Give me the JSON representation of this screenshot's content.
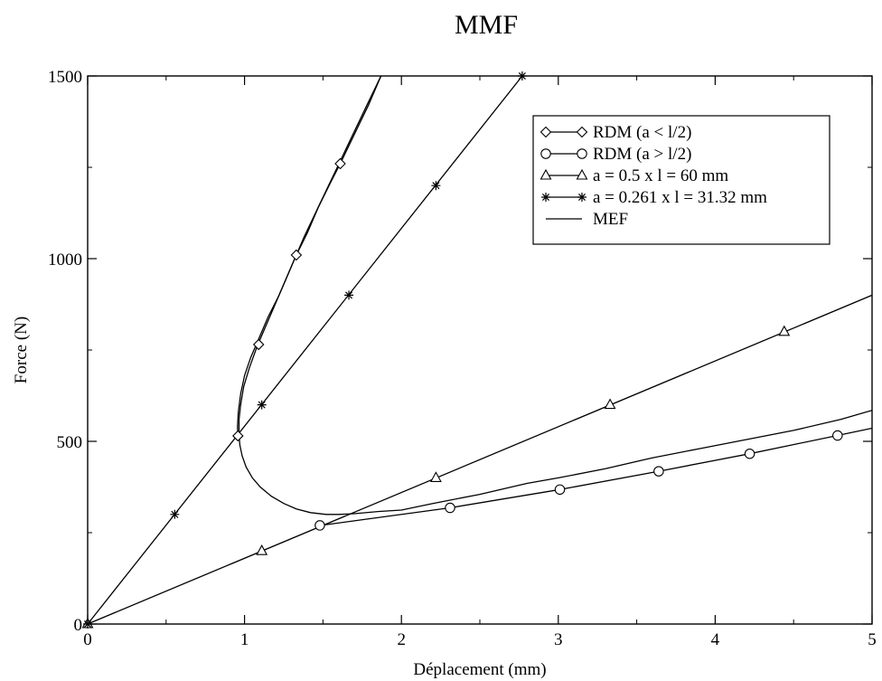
{
  "chart_data": {
    "type": "line",
    "title": "MMF",
    "xlabel": "Déplacement (mm)",
    "ylabel": "Force (N)",
    "xlim": [
      0,
      5
    ],
    "ylim": [
      0,
      1500
    ],
    "x_ticks": [
      0,
      1,
      2,
      3,
      4,
      5
    ],
    "y_ticks": [
      0,
      500,
      1000,
      1500
    ],
    "grid": false,
    "legend_position": "top-right",
    "series": [
      {
        "name": "RDM (a < l/2)",
        "marker": "diamond",
        "line": [
          [
            0.958,
            510
          ],
          [
            0.955,
            540
          ],
          [
            0.96,
            580
          ],
          [
            0.975,
            630
          ],
          [
            1.0,
            680
          ],
          [
            1.04,
            730
          ],
          [
            1.09,
            780
          ],
          [
            1.15,
            840
          ],
          [
            1.22,
            900
          ],
          [
            1.28,
            960
          ],
          [
            1.33,
            1010
          ],
          [
            1.4,
            1070
          ],
          [
            1.47,
            1140
          ],
          [
            1.55,
            1210
          ],
          [
            1.61,
            1260
          ],
          [
            1.7,
            1340
          ],
          [
            1.79,
            1420
          ],
          [
            1.87,
            1500
          ]
        ],
        "markers": [
          [
            0.958,
            515
          ],
          [
            1.09,
            765
          ],
          [
            1.33,
            1010
          ],
          [
            1.61,
            1260
          ]
        ]
      },
      {
        "name": "RDM (a > l/2)",
        "marker": "circle",
        "line": [
          [
            1.48,
            270
          ],
          [
            1.52,
            272
          ],
          [
            2.31,
            318
          ],
          [
            3.01,
            368
          ],
          [
            3.64,
            418
          ],
          [
            4.22,
            466
          ],
          [
            4.78,
            516
          ],
          [
            5.0,
            536
          ]
        ],
        "markers": [
          [
            1.48,
            270
          ],
          [
            2.31,
            318
          ],
          [
            3.01,
            368
          ],
          [
            3.64,
            418
          ],
          [
            4.22,
            466
          ],
          [
            4.78,
            516
          ]
        ]
      },
      {
        "name": "a = 0.5 x l = 60 mm",
        "marker": "triangle",
        "line": [
          [
            0,
            0
          ],
          [
            5.0,
            900
          ]
        ],
        "markers": [
          [
            0,
            0
          ],
          [
            1.11,
            200
          ],
          [
            2.22,
            400
          ],
          [
            3.33,
            600
          ],
          [
            4.44,
            800
          ]
        ]
      },
      {
        "name": "a = 0.261 x l = 31.32 mm",
        "marker": "star",
        "line": [
          [
            0,
            0
          ],
          [
            2.77,
            1500
          ]
        ],
        "markers": [
          [
            0,
            0
          ],
          [
            0.555,
            300
          ],
          [
            1.11,
            600
          ],
          [
            1.665,
            900
          ],
          [
            2.22,
            1200
          ],
          [
            2.77,
            1500
          ]
        ]
      },
      {
        "name": "MEF",
        "marker": "none",
        "line": [
          [
            1.87,
            1500
          ],
          [
            1.78,
            1420
          ],
          [
            1.68,
            1330
          ],
          [
            1.58,
            1240
          ],
          [
            1.48,
            1150
          ],
          [
            1.38,
            1060
          ],
          [
            1.29,
            970
          ],
          [
            1.21,
            890
          ],
          [
            1.14,
            820
          ],
          [
            1.08,
            760
          ],
          [
            1.03,
            700
          ],
          [
            0.995,
            650
          ],
          [
            0.975,
            600
          ],
          [
            0.965,
            560
          ],
          [
            0.965,
            520
          ],
          [
            0.97,
            490
          ],
          [
            0.985,
            460
          ],
          [
            1.01,
            430
          ],
          [
            1.05,
            400
          ],
          [
            1.1,
            375
          ],
          [
            1.17,
            350
          ],
          [
            1.25,
            330
          ],
          [
            1.33,
            315
          ],
          [
            1.42,
            305
          ],
          [
            1.52,
            300
          ],
          [
            1.6,
            300
          ],
          [
            1.7,
            302
          ],
          [
            1.85,
            308
          ],
          [
            2.0,
            312
          ],
          [
            2.2,
            330
          ],
          [
            2.5,
            355
          ],
          [
            2.8,
            385
          ],
          [
            3.0,
            400
          ],
          [
            3.3,
            425
          ],
          [
            3.6,
            455
          ],
          [
            3.9,
            480
          ],
          [
            4.2,
            505
          ],
          [
            4.5,
            530
          ],
          [
            4.8,
            560
          ],
          [
            5.0,
            585
          ]
        ]
      }
    ]
  }
}
